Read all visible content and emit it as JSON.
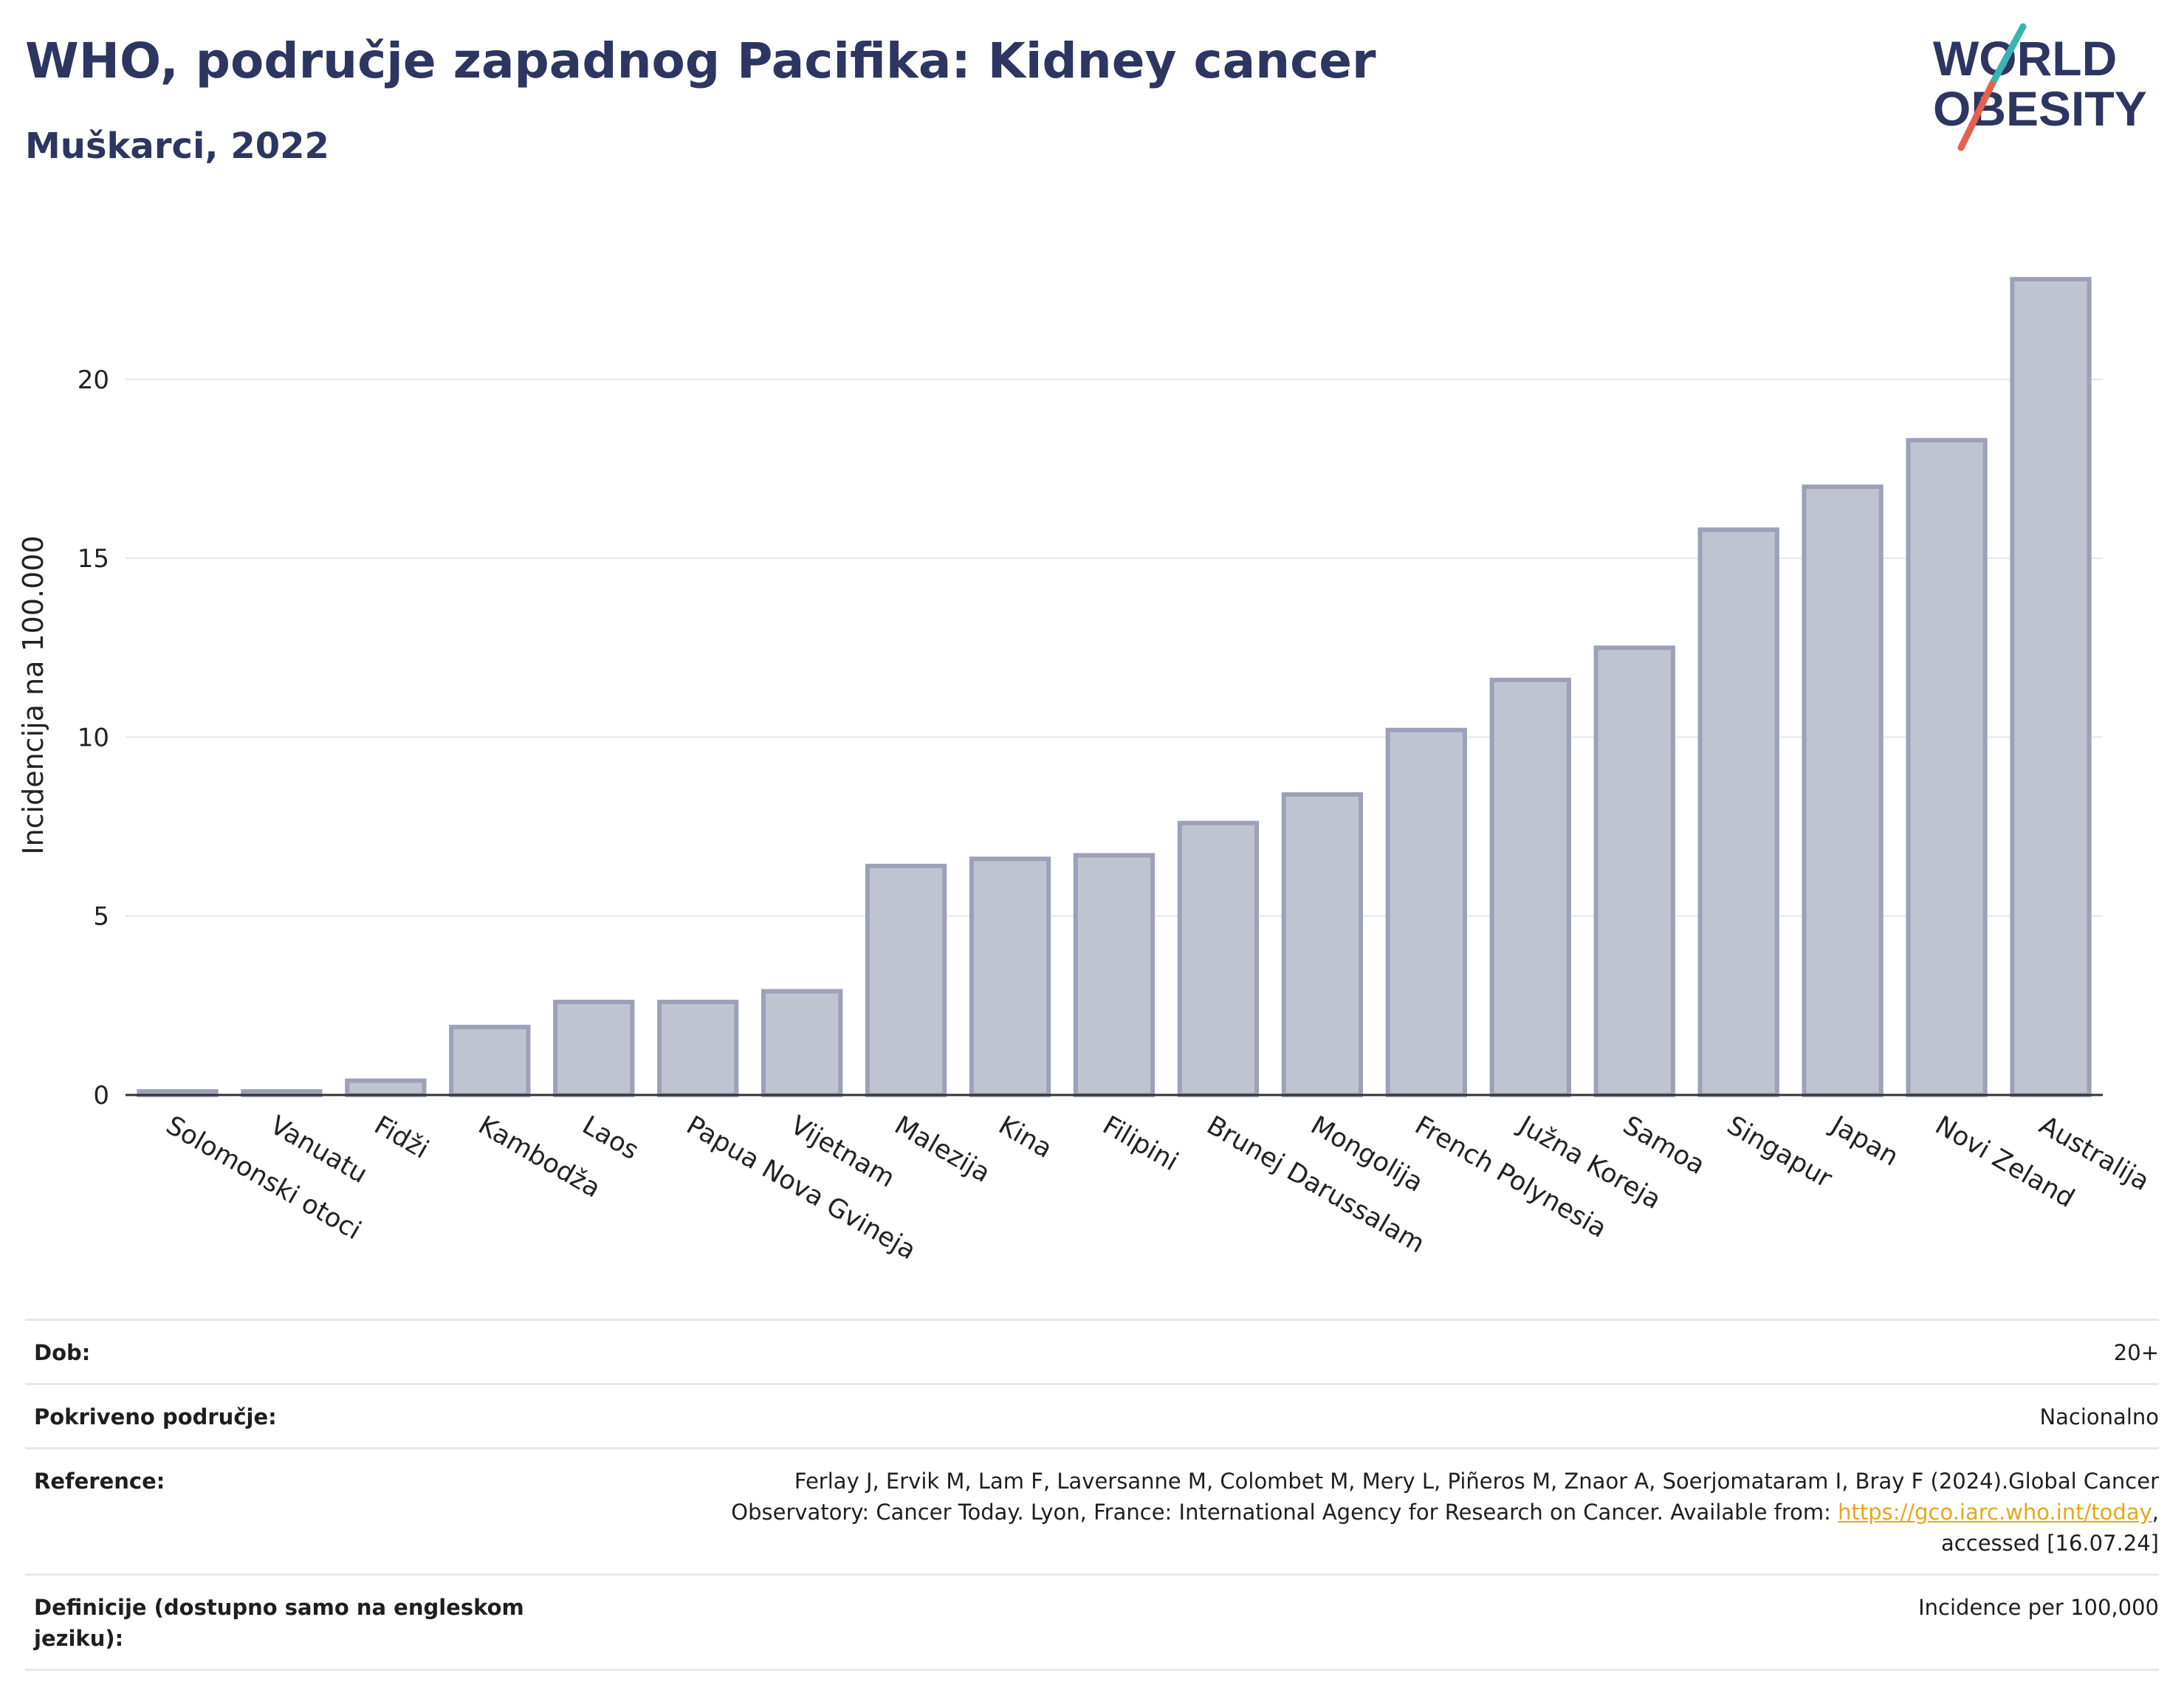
{
  "header": {
    "title": "WHO, područje zapadnog Pacifika: Kidney cancer",
    "subtitle": "Muškarci, 2022"
  },
  "logo": {
    "line1": "WORLD",
    "line2": "OBESITY"
  },
  "colors": {
    "title": "#2d3660",
    "bar_fill": "#c0c3d0",
    "bar_stroke": "#9ca1b8",
    "logo_teal": "#3ab4b0",
    "logo_coral": "#e5614f",
    "link": "#e7a61a"
  },
  "chart_data": {
    "type": "bar",
    "title": "WHO, područje zapadnog Pacifika: Kidney cancer",
    "subtitle": "Muškarci, 2022",
    "ylabel": "Incidencija na 100.000",
    "ylim": [
      0,
      24
    ],
    "yticks": [
      0,
      5,
      10,
      15,
      20
    ],
    "grid": true,
    "categories": [
      "Solomonski otoci",
      "Vanuatu",
      "Fidži",
      "Kambodža",
      "Laos",
      "Papua Nova Gvineja",
      "Vijetnam",
      "Malezija",
      "Kina",
      "Filipini",
      "Brunej Darussalam",
      "Mongolija",
      "French Polynesia",
      "Južna Koreja",
      "Samoa",
      "Singapur",
      "Japan",
      "Novi Zeland",
      "Australija"
    ],
    "values": [
      0.1,
      0.1,
      0.4,
      1.9,
      2.6,
      2.6,
      2.9,
      6.4,
      6.6,
      6.7,
      7.6,
      8.4,
      10.2,
      11.6,
      12.5,
      15.8,
      17.0,
      18.3,
      22.8
    ]
  },
  "info": {
    "rows": [
      {
        "label": "Dob:",
        "value": "20+"
      },
      {
        "label": "Pokriveno područje:",
        "value": "Nacionalno"
      },
      {
        "label": "Reference:",
        "value_line1": "Ferlay J, Ervik M, Lam F, Laversanne M, Colombet M, Mery L, Piñeros M, Znaor A, Soerjomataram I, Bray F (2024).Global Cancer",
        "value_line2_pre": "Observatory: Cancer Today. Lyon, France: International Agency for Research on Cancer. Available from: ",
        "value_link": "https://gco.iarc.who.int/today",
        "value_line2_post": ",",
        "value_line3": "accessed [16.07.24]"
      },
      {
        "label": "Definicije (dostupno samo na engleskom jeziku):",
        "value": "Incidence per 100,000"
      }
    ]
  }
}
